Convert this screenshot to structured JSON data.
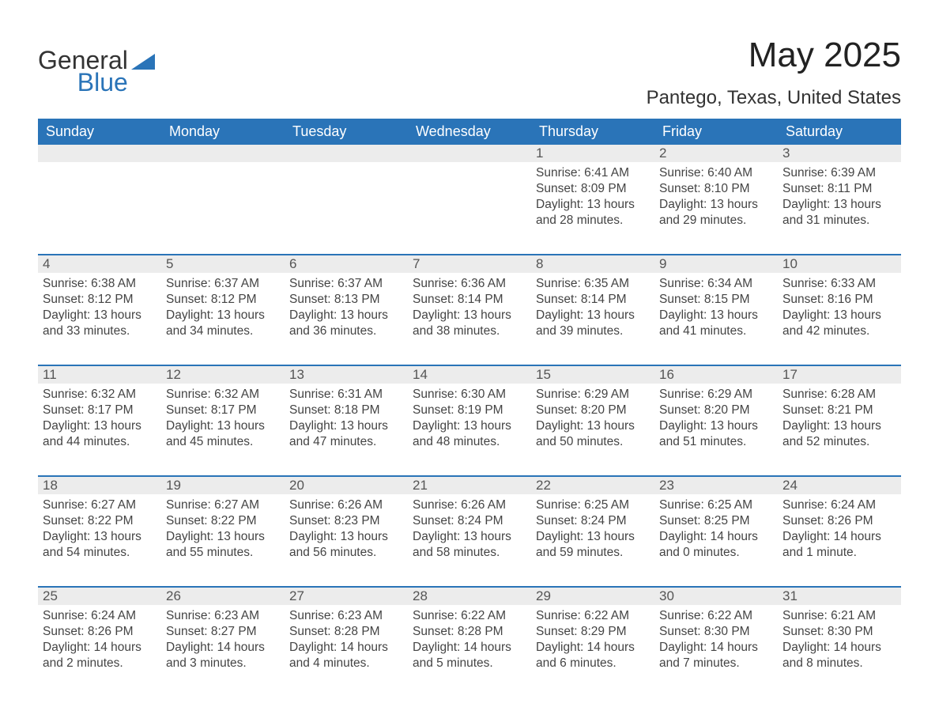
{
  "logo": {
    "word1": "General",
    "word2": "Blue"
  },
  "title": "May 2025",
  "location": "Pantego, Texas, United States",
  "colors": {
    "header_bg": "#2a74b8",
    "header_text": "#ffffff",
    "daynum_bg": "#ececec",
    "text": "#333333",
    "border": "#2a74b8"
  },
  "weekdays": [
    "Sunday",
    "Monday",
    "Tuesday",
    "Wednesday",
    "Thursday",
    "Friday",
    "Saturday"
  ],
  "weeks": [
    [
      {
        "n": "",
        "sunrise": "",
        "sunset": "",
        "daylight": ""
      },
      {
        "n": "",
        "sunrise": "",
        "sunset": "",
        "daylight": ""
      },
      {
        "n": "",
        "sunrise": "",
        "sunset": "",
        "daylight": ""
      },
      {
        "n": "",
        "sunrise": "",
        "sunset": "",
        "daylight": ""
      },
      {
        "n": "1",
        "sunrise": "Sunrise: 6:41 AM",
        "sunset": "Sunset: 8:09 PM",
        "daylight": "Daylight: 13 hours and 28 minutes."
      },
      {
        "n": "2",
        "sunrise": "Sunrise: 6:40 AM",
        "sunset": "Sunset: 8:10 PM",
        "daylight": "Daylight: 13 hours and 29 minutes."
      },
      {
        "n": "3",
        "sunrise": "Sunrise: 6:39 AM",
        "sunset": "Sunset: 8:11 PM",
        "daylight": "Daylight: 13 hours and 31 minutes."
      }
    ],
    [
      {
        "n": "4",
        "sunrise": "Sunrise: 6:38 AM",
        "sunset": "Sunset: 8:12 PM",
        "daylight": "Daylight: 13 hours and 33 minutes."
      },
      {
        "n": "5",
        "sunrise": "Sunrise: 6:37 AM",
        "sunset": "Sunset: 8:12 PM",
        "daylight": "Daylight: 13 hours and 34 minutes."
      },
      {
        "n": "6",
        "sunrise": "Sunrise: 6:37 AM",
        "sunset": "Sunset: 8:13 PM",
        "daylight": "Daylight: 13 hours and 36 minutes."
      },
      {
        "n": "7",
        "sunrise": "Sunrise: 6:36 AM",
        "sunset": "Sunset: 8:14 PM",
        "daylight": "Daylight: 13 hours and 38 minutes."
      },
      {
        "n": "8",
        "sunrise": "Sunrise: 6:35 AM",
        "sunset": "Sunset: 8:14 PM",
        "daylight": "Daylight: 13 hours and 39 minutes."
      },
      {
        "n": "9",
        "sunrise": "Sunrise: 6:34 AM",
        "sunset": "Sunset: 8:15 PM",
        "daylight": "Daylight: 13 hours and 41 minutes."
      },
      {
        "n": "10",
        "sunrise": "Sunrise: 6:33 AM",
        "sunset": "Sunset: 8:16 PM",
        "daylight": "Daylight: 13 hours and 42 minutes."
      }
    ],
    [
      {
        "n": "11",
        "sunrise": "Sunrise: 6:32 AM",
        "sunset": "Sunset: 8:17 PM",
        "daylight": "Daylight: 13 hours and 44 minutes."
      },
      {
        "n": "12",
        "sunrise": "Sunrise: 6:32 AM",
        "sunset": "Sunset: 8:17 PM",
        "daylight": "Daylight: 13 hours and 45 minutes."
      },
      {
        "n": "13",
        "sunrise": "Sunrise: 6:31 AM",
        "sunset": "Sunset: 8:18 PM",
        "daylight": "Daylight: 13 hours and 47 minutes."
      },
      {
        "n": "14",
        "sunrise": "Sunrise: 6:30 AM",
        "sunset": "Sunset: 8:19 PM",
        "daylight": "Daylight: 13 hours and 48 minutes."
      },
      {
        "n": "15",
        "sunrise": "Sunrise: 6:29 AM",
        "sunset": "Sunset: 8:20 PM",
        "daylight": "Daylight: 13 hours and 50 minutes."
      },
      {
        "n": "16",
        "sunrise": "Sunrise: 6:29 AM",
        "sunset": "Sunset: 8:20 PM",
        "daylight": "Daylight: 13 hours and 51 minutes."
      },
      {
        "n": "17",
        "sunrise": "Sunrise: 6:28 AM",
        "sunset": "Sunset: 8:21 PM",
        "daylight": "Daylight: 13 hours and 52 minutes."
      }
    ],
    [
      {
        "n": "18",
        "sunrise": "Sunrise: 6:27 AM",
        "sunset": "Sunset: 8:22 PM",
        "daylight": "Daylight: 13 hours and 54 minutes."
      },
      {
        "n": "19",
        "sunrise": "Sunrise: 6:27 AM",
        "sunset": "Sunset: 8:22 PM",
        "daylight": "Daylight: 13 hours and 55 minutes."
      },
      {
        "n": "20",
        "sunrise": "Sunrise: 6:26 AM",
        "sunset": "Sunset: 8:23 PM",
        "daylight": "Daylight: 13 hours and 56 minutes."
      },
      {
        "n": "21",
        "sunrise": "Sunrise: 6:26 AM",
        "sunset": "Sunset: 8:24 PM",
        "daylight": "Daylight: 13 hours and 58 minutes."
      },
      {
        "n": "22",
        "sunrise": "Sunrise: 6:25 AM",
        "sunset": "Sunset: 8:24 PM",
        "daylight": "Daylight: 13 hours and 59 minutes."
      },
      {
        "n": "23",
        "sunrise": "Sunrise: 6:25 AM",
        "sunset": "Sunset: 8:25 PM",
        "daylight": "Daylight: 14 hours and 0 minutes."
      },
      {
        "n": "24",
        "sunrise": "Sunrise: 6:24 AM",
        "sunset": "Sunset: 8:26 PM",
        "daylight": "Daylight: 14 hours and 1 minute."
      }
    ],
    [
      {
        "n": "25",
        "sunrise": "Sunrise: 6:24 AM",
        "sunset": "Sunset: 8:26 PM",
        "daylight": "Daylight: 14 hours and 2 minutes."
      },
      {
        "n": "26",
        "sunrise": "Sunrise: 6:23 AM",
        "sunset": "Sunset: 8:27 PM",
        "daylight": "Daylight: 14 hours and 3 minutes."
      },
      {
        "n": "27",
        "sunrise": "Sunrise: 6:23 AM",
        "sunset": "Sunset: 8:28 PM",
        "daylight": "Daylight: 14 hours and 4 minutes."
      },
      {
        "n": "28",
        "sunrise": "Sunrise: 6:22 AM",
        "sunset": "Sunset: 8:28 PM",
        "daylight": "Daylight: 14 hours and 5 minutes."
      },
      {
        "n": "29",
        "sunrise": "Sunrise: 6:22 AM",
        "sunset": "Sunset: 8:29 PM",
        "daylight": "Daylight: 14 hours and 6 minutes."
      },
      {
        "n": "30",
        "sunrise": "Sunrise: 6:22 AM",
        "sunset": "Sunset: 8:30 PM",
        "daylight": "Daylight: 14 hours and 7 minutes."
      },
      {
        "n": "31",
        "sunrise": "Sunrise: 6:21 AM",
        "sunset": "Sunset: 8:30 PM",
        "daylight": "Daylight: 14 hours and 8 minutes."
      }
    ]
  ]
}
